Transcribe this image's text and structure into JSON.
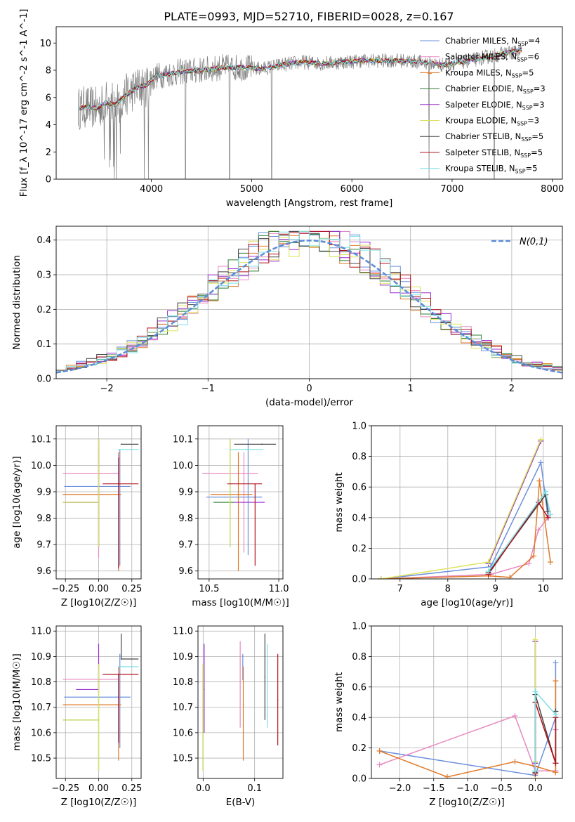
{
  "figure_title": "PLATE=0993, MJD=52710, FIBERID=0028, z=0.167",
  "colors": {
    "Chabrier MILES": "#6a8fdc",
    "Salpeter MILES": "#e889c0",
    "Kroupa MILES": "#e07a2a",
    "Chabrier ELODIE": "#2e7d32",
    "Salpeter ELODIE": "#9b2fcf",
    "Kroupa ELODIE": "#dde35a",
    "Chabrier STELIB": "#444444",
    "Salpeter STELIB": "#b0121b",
    "Kroupa STELIB": "#7fe0e6",
    "spectrum": "#7f7f7f",
    "gaussian": "#5b8cd6"
  },
  "chart_data": [
    {
      "id": "spectrum",
      "type": "line",
      "title": "PLATE=0993, MJD=52710, FIBERID=0028, z=0.167",
      "xlabel": "wavelength [Angstrom, rest frame]",
      "ylabel": "Flux [f_λ 10^-17 erg cm^-2 s^-1 A^-1]",
      "xlim": [
        3050,
        8100
      ],
      "ylim": [
        0,
        11.2
      ],
      "xticks": [
        4000,
        5000,
        6000,
        7000,
        8000
      ],
      "yticks": [
        0,
        2,
        4,
        6,
        8,
        10
      ],
      "grid": false,
      "legend_position": "top-right",
      "legend": [
        "Chabrier MILES, N_SSP=4",
        "Salpeter MILES, N_SSP=6",
        "Kroupa MILES, N_SSP=5",
        "Chabrier ELODIE, N_SSP=3",
        "Salpeter ELODIE, N_SSP=3",
        "Kroupa ELODIE, N_SSP=3",
        "Chabrier STELIB, N_SSP=5",
        "Salpeter STELIB, N_SSP=5",
        "Kroupa STELIB, N_SSP=5"
      ],
      "continuum": {
        "x": [
          3270,
          3350,
          3450,
          3550,
          3650,
          3750,
          3850,
          3950,
          4050,
          4150,
          4300,
          4500,
          4700,
          4900,
          5100,
          5300,
          5500,
          5700,
          5900,
          6100,
          6300,
          6500,
          6700,
          6900,
          7100,
          7300,
          7500,
          7700
        ],
        "y": [
          5.2,
          5.3,
          5.2,
          5.6,
          5.5,
          6.2,
          6.7,
          6.9,
          7.6,
          7.7,
          7.9,
          8.0,
          8.2,
          8.2,
          8.1,
          8.4,
          8.6,
          8.5,
          8.6,
          8.7,
          8.7,
          8.7,
          8.6,
          8.4,
          8.6,
          8.9,
          9.2,
          9.5
        ]
      },
      "absorption_lines": [
        3630,
        3650,
        3930,
        3970,
        4340,
        4780,
        5200,
        6770,
        7420
      ]
    },
    {
      "id": "residuals",
      "type": "histogram",
      "xlabel": "(data-model)/error",
      "ylabel": "Normed distribution",
      "xlim": [
        -2.5,
        2.5
      ],
      "ylim": [
        0,
        0.44
      ],
      "xticks": [
        -2,
        -1,
        0,
        1,
        2
      ],
      "yticks": [
        0.0,
        0.1,
        0.2,
        0.3,
        0.4
      ],
      "grid": true,
      "legend_position": "top-right",
      "legend": [
        "N(0,1)"
      ],
      "bin_width": 0.1,
      "bin_start": -2.5
    },
    {
      "id": "age_vs_Z",
      "type": "errorbar",
      "xlabel": "Z [log10(Z/Z☉)]",
      "ylabel": "age [log10(age/yr)]",
      "xlim": [
        -0.32,
        0.32
      ],
      "ylim": [
        9.57,
        10.15
      ],
      "xticks": [
        -0.25,
        0.0,
        0.25
      ],
      "yticks": [
        9.6,
        9.7,
        9.8,
        9.9,
        10.0,
        10.1
      ],
      "grid": true,
      "points": [
        {
          "model": "Chabrier MILES",
          "x": 0.16,
          "xerr": [
            0.42,
            0.08
          ],
          "y": 9.92,
          "yerr": [
            0.3,
            0.14
          ]
        },
        {
          "model": "Salpeter MILES",
          "x": 0.0,
          "xerr": [
            0.27,
            0.16
          ],
          "y": 9.97,
          "yerr": [
            0.32,
            0.1
          ]
        },
        {
          "model": "Kroupa MILES",
          "x": 0.15,
          "xerr": [
            0.42,
            0.02
          ],
          "y": 9.89,
          "yerr": [
            0.29,
            0.16
          ]
        },
        {
          "model": "Chabrier ELODIE",
          "x": 0.0,
          "xerr": [
            0.27,
            0.0
          ],
          "y": 9.86,
          "yerr": [
            0.17,
            0.24
          ]
        },
        {
          "model": "Salpeter ELODIE",
          "x": 0.0,
          "xerr": [
            0.27,
            0.0
          ],
          "y": 9.86,
          "yerr": [
            0.17,
            0.24
          ]
        },
        {
          "model": "Kroupa ELODIE",
          "x": 0.0,
          "xerr": [
            0.27,
            0.0
          ],
          "y": 9.86,
          "yerr": [
            0.17,
            0.24
          ]
        },
        {
          "model": "Chabrier STELIB",
          "x": 0.17,
          "xerr": [
            0.0,
            0.13
          ],
          "y": 10.08,
          "yerr": [
            0.0,
            0.0
          ]
        },
        {
          "model": "Salpeter STELIB",
          "x": 0.15,
          "xerr": [
            0.12,
            0.15
          ],
          "y": 9.93,
          "yerr": [
            0.32,
            0.1
          ]
        },
        {
          "model": "Kroupa STELIB",
          "x": 0.15,
          "xerr": [
            0.0,
            0.15
          ],
          "y": 10.06,
          "yerr": [
            0.0,
            0.0
          ]
        }
      ]
    },
    {
      "id": "age_vs_mass",
      "type": "errorbar",
      "xlabel": "mass [log10(M/M☉)]",
      "ylabel": "",
      "xlim": [
        10.42,
        11.03
      ],
      "ylim": [
        9.57,
        10.15
      ],
      "xticks": [
        10.5,
        11.0
      ],
      "yticks": [
        9.6,
        9.7,
        9.8,
        9.9,
        10.0,
        10.1
      ],
      "grid": true,
      "points": [
        {
          "model": "Chabrier MILES",
          "x": 10.78,
          "xerr": [
            0.3,
            0.1
          ],
          "y": 9.88,
          "yerr": [
            0.22,
            0.22
          ]
        },
        {
          "model": "Salpeter MILES",
          "x": 10.75,
          "xerr": [
            0.3,
            0.1
          ],
          "y": 9.97,
          "yerr": [
            0.3,
            0.08
          ]
        },
        {
          "model": "Kroupa MILES",
          "x": 10.71,
          "xerr": [
            0.2,
            0.1
          ],
          "y": 9.89,
          "yerr": [
            0.29,
            0.16
          ]
        },
        {
          "model": "Chabrier ELODIE",
          "x": 10.65,
          "xerr": [
            0.12,
            0.03
          ],
          "y": 9.86,
          "yerr": [
            0.17,
            0.24
          ]
        },
        {
          "model": "Salpeter ELODIE",
          "x": 10.88,
          "xerr": [
            0.2,
            0.02
          ],
          "y": 9.86,
          "yerr": [
            0.0,
            0.0
          ]
        },
        {
          "model": "Kroupa ELODIE",
          "x": 10.65,
          "xerr": [
            0.0,
            0.0
          ],
          "y": 9.86,
          "yerr": [
            0.17,
            0.24
          ]
        },
        {
          "model": "Chabrier STELIB",
          "x": 10.88,
          "xerr": [
            0.2,
            0.1
          ],
          "y": 10.08,
          "yerr": [
            0.0,
            0.0
          ]
        },
        {
          "model": "Salpeter STELIB",
          "x": 10.83,
          "xerr": [
            0.2,
            0.05
          ],
          "y": 9.93,
          "yerr": [
            0.31,
            0.0
          ]
        },
        {
          "model": "Kroupa STELIB",
          "x": 10.77,
          "xerr": [
            0.12,
            0.12
          ],
          "y": 10.06,
          "yerr": [
            0.0,
            0.0
          ]
        }
      ]
    },
    {
      "id": "mass_weight_vs_age",
      "type": "line",
      "xlabel": "age [log10(age/yr)]",
      "ylabel": "mass weight",
      "xlim": [
        6.4,
        10.4
      ],
      "ylim": [
        0,
        1
      ],
      "xticks": [
        7,
        8,
        9,
        10
      ],
      "yticks": [
        0.0,
        0.2,
        0.4,
        0.6,
        0.8,
        1.0
      ],
      "grid": true,
      "series": [
        {
          "model": "Chabrier MILES",
          "x": [
            6.6,
            8.9,
            9.95,
            10.1
          ],
          "y": [
            0.0,
            0.08,
            0.76,
            0.4
          ]
        },
        {
          "model": "Salpeter MILES",
          "x": [
            6.6,
            8.9,
            9.7,
            9.9,
            10.15
          ],
          "y": [
            0.0,
            0.03,
            0.1,
            0.32,
            0.42
          ]
        },
        {
          "model": "Kroupa MILES",
          "x": [
            6.6,
            8.85,
            9.3,
            9.8,
            9.92,
            10.15
          ],
          "y": [
            0.0,
            0.02,
            0.01,
            0.15,
            0.64,
            0.11
          ]
        },
        {
          "model": "Chabrier ELODIE",
          "x": [
            8.85,
            9.95
          ],
          "y": [
            0.1,
            0.9
          ]
        },
        {
          "model": "Salpeter ELODIE",
          "x": [
            8.85,
            9.95
          ],
          "y": [
            0.1,
            0.9
          ]
        },
        {
          "model": "Kroupa ELODIE",
          "x": [
            6.6,
            8.85,
            9.95
          ],
          "y": [
            0.0,
            0.11,
            0.91
          ]
        },
        {
          "model": "Chabrier STELIB",
          "x": [
            8.85,
            10.05,
            10.1
          ],
          "y": [
            0.04,
            0.55,
            0.44
          ]
        },
        {
          "model": "Salpeter STELIB",
          "x": [
            8.85,
            9.9,
            10.1
          ],
          "y": [
            0.03,
            0.5,
            0.4
          ]
        },
        {
          "model": "Kroupa STELIB",
          "x": [
            8.85,
            10.05,
            10.15
          ],
          "y": [
            0.05,
            0.57,
            0.42
          ]
        }
      ]
    },
    {
      "id": "mass_vs_Z",
      "type": "errorbar",
      "xlabel": "Z [log10(Z/Z☉)]",
      "ylabel": "mass [log10(M/M☉)]",
      "xlim": [
        -0.32,
        0.32
      ],
      "ylim": [
        10.42,
        11.02
      ],
      "xticks": [
        -0.25,
        0.0,
        0.25
      ],
      "yticks": [
        10.5,
        10.6,
        10.7,
        10.8,
        10.9,
        11.0
      ],
      "grid": true,
      "points": [
        {
          "model": "Chabrier MILES",
          "x": 0.16,
          "xerr": [
            0.42,
            0.08
          ],
          "y": 10.74,
          "yerr": [
            0.2,
            0.17
          ]
        },
        {
          "model": "Salpeter MILES",
          "x": 0.0,
          "xerr": [
            0.27,
            0.16
          ],
          "y": 10.81,
          "yerr": [
            0.0,
            0.0
          ]
        },
        {
          "model": "Kroupa MILES",
          "x": 0.15,
          "xerr": [
            0.42,
            0.02
          ],
          "y": 10.71,
          "yerr": [
            0.22,
            0.15
          ]
        },
        {
          "model": "Chabrier ELODIE",
          "x": 0.0,
          "xerr": [
            0.27,
            0.0
          ],
          "y": 10.65,
          "yerr": [
            0.2,
            0.22
          ]
        },
        {
          "model": "Salpeter ELODIE",
          "x": 0.0,
          "xerr": [
            0.17,
            0.0
          ],
          "y": 10.77,
          "yerr": [
            0.0,
            0.18
          ]
        },
        {
          "model": "Kroupa ELODIE",
          "x": 0.0,
          "xerr": [
            0.27,
            0.0
          ],
          "y": 10.65,
          "yerr": [
            0.2,
            0.22
          ]
        },
        {
          "model": "Chabrier STELIB",
          "x": 0.17,
          "xerr": [
            0.0,
            0.13
          ],
          "y": 10.89,
          "yerr": [
            0.0,
            0.1
          ]
        },
        {
          "model": "Salpeter STELIB",
          "x": 0.15,
          "xerr": [
            0.12,
            0.15
          ],
          "y": 10.83,
          "yerr": [
            0.27,
            0.0
          ]
        },
        {
          "model": "Kroupa STELIB",
          "x": 0.15,
          "xerr": [
            0.0,
            0.15
          ],
          "y": 10.86,
          "yerr": [
            0.0,
            0.0
          ]
        }
      ]
    },
    {
      "id": "mass_vs_EBV",
      "type": "errorbar",
      "xlabel": "E(B-V)",
      "ylabel": "",
      "xlim": [
        -0.01,
        0.155
      ],
      "ylim": [
        10.42,
        11.02
      ],
      "xticks": [
        0.0,
        0.1
      ],
      "yticks": [
        10.5,
        10.6,
        10.7,
        10.8,
        10.9,
        11.0
      ],
      "grid": true,
      "points": [
        {
          "model": "Chabrier MILES",
          "x": 0.077,
          "y": 10.81,
          "yerr": [
            0.0,
            0.1
          ]
        },
        {
          "model": "Salpeter MILES",
          "x": 0.072,
          "y": 10.78,
          "yerr": [
            0.16,
            0.18
          ]
        },
        {
          "model": "Kroupa MILES",
          "x": 0.078,
          "y": 10.71,
          "yerr": [
            0.22,
            0.15
          ]
        },
        {
          "model": "Chabrier ELODIE",
          "x": 0.0,
          "y": 10.65,
          "yerr": [
            0.2,
            0.22
          ]
        },
        {
          "model": "Salpeter ELODIE",
          "x": 0.002,
          "y": 10.77,
          "yerr": [
            0.17,
            0.18
          ]
        },
        {
          "model": "Kroupa ELODIE",
          "x": 0.0,
          "y": 10.65,
          "yerr": [
            0.2,
            0.22
          ]
        },
        {
          "model": "Chabrier STELIB",
          "x": 0.12,
          "y": 10.82,
          "yerr": [
            0.17,
            0.17
          ]
        },
        {
          "model": "Salpeter STELIB",
          "x": 0.145,
          "y": 10.73,
          "yerr": [
            0.18,
            0.18
          ]
        },
        {
          "model": "Kroupa STELIB",
          "x": 0.125,
          "y": 10.79,
          "yerr": [
            0.17,
            0.16
          ]
        }
      ]
    },
    {
      "id": "mass_weight_vs_Z",
      "type": "line",
      "xlabel": "Z [log10(Z/Z☉)]",
      "ylabel": "mass weight",
      "xlim": [
        -2.42,
        0.4
      ],
      "ylim": [
        0,
        1
      ],
      "xticks": [
        -2.0,
        -1.5,
        -1.0,
        -0.5,
        0.0
      ],
      "yticks": [
        0.0,
        0.2,
        0.4,
        0.6,
        0.8,
        1.0
      ],
      "grid": true,
      "series": [
        {
          "model": "Chabrier MILES",
          "x": [
            -2.3,
            0.0,
            0.3,
            0.3
          ],
          "y": [
            0.18,
            0.02,
            0.4,
            0.76
          ]
        },
        {
          "model": "Salpeter MILES",
          "x": [
            -2.3,
            -0.3,
            0.0,
            0.3,
            0.3
          ],
          "y": [
            0.09,
            0.41,
            0.05,
            0.05,
            0.32
          ]
        },
        {
          "model": "Kroupa MILES",
          "x": [
            -2.3,
            -1.3,
            -0.3,
            0.0,
            0.3,
            0.3
          ],
          "y": [
            0.18,
            0.01,
            0.11,
            0.08,
            0.04,
            0.64
          ]
        },
        {
          "model": "Chabrier ELODIE",
          "x": [
            0.0,
            0.0
          ],
          "y": [
            0.1,
            0.9
          ]
        },
        {
          "model": "Salpeter ELODIE",
          "x": [
            0.0,
            0.0
          ],
          "y": [
            0.1,
            0.9
          ]
        },
        {
          "model": "Kroupa ELODIE",
          "x": [
            0.0,
            0.0,
            0.0
          ],
          "y": [
            0.0,
            0.11,
            0.91
          ]
        },
        {
          "model": "Chabrier STELIB",
          "x": [
            0.0,
            0.0,
            0.3,
            0.3
          ],
          "y": [
            0.04,
            0.55,
            0.1,
            0.44
          ]
        },
        {
          "model": "Salpeter STELIB",
          "x": [
            0.0,
            0.0,
            0.3,
            0.3
          ],
          "y": [
            0.03,
            0.5,
            0.1,
            0.4
          ]
        },
        {
          "model": "Kroupa STELIB",
          "x": [
            0.0,
            0.0,
            0.3
          ],
          "y": [
            0.05,
            0.57,
            0.42
          ]
        }
      ]
    }
  ]
}
